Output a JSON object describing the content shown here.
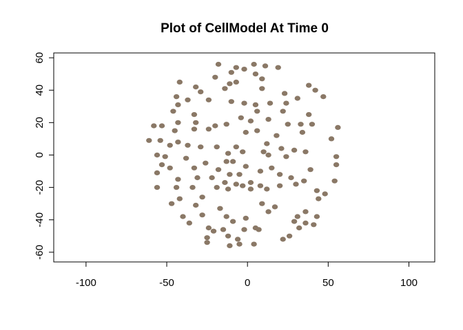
{
  "chart_data": {
    "type": "scatter",
    "title": "Plot of CellModel At Time 0",
    "xlabel": "",
    "ylabel": "",
    "xlim": [
      -120,
      116
    ],
    "ylim": [
      -66,
      63
    ],
    "x_ticks": [
      -100,
      -50,
      0,
      50,
      100
    ],
    "y_ticks": [
      -60,
      -40,
      -20,
      0,
      20,
      40,
      60
    ],
    "grid": false,
    "point_color": "#8a7866",
    "points": [
      [
        -18,
        56
      ],
      [
        -2,
        53
      ],
      [
        4,
        56
      ],
      [
        11,
        55
      ],
      [
        19,
        54
      ],
      [
        -7,
        54
      ],
      [
        -10,
        51
      ],
      [
        5,
        50
      ],
      [
        9,
        47
      ],
      [
        -20,
        48
      ],
      [
        -42,
        45
      ],
      [
        -7,
        45
      ],
      [
        -11,
        44
      ],
      [
        38,
        43
      ],
      [
        42,
        40
      ],
      [
        -32,
        42
      ],
      [
        -14,
        41
      ],
      [
        9,
        41
      ],
      [
        -29,
        39
      ],
      [
        23,
        38
      ],
      [
        -44,
        36
      ],
      [
        47,
        36
      ],
      [
        31,
        35
      ],
      [
        -10,
        33
      ],
      [
        -2,
        32
      ],
      [
        -37,
        34
      ],
      [
        -24,
        34
      ],
      [
        5,
        31
      ],
      [
        14,
        32
      ],
      [
        24,
        32
      ],
      [
        -43,
        31
      ],
      [
        6,
        27
      ],
      [
        -46,
        27
      ],
      [
        22,
        27
      ],
      [
        -33,
        25
      ],
      [
        38,
        25
      ],
      [
        -4,
        23
      ],
      [
        2,
        21
      ],
      [
        33,
        19
      ],
      [
        40,
        19
      ],
      [
        -43,
        20
      ],
      [
        -32,
        20
      ],
      [
        13,
        22
      ],
      [
        -58,
        18
      ],
      [
        -53,
        18
      ],
      [
        -20,
        18
      ],
      [
        -13,
        19
      ],
      [
        25,
        19
      ],
      [
        56,
        17
      ],
      [
        -24,
        16
      ],
      [
        -33,
        16
      ],
      [
        -45,
        15
      ],
      [
        6,
        15
      ],
      [
        -1,
        14
      ],
      [
        34,
        14
      ],
      [
        18,
        12
      ],
      [
        52,
        10
      ],
      [
        -61,
        9
      ],
      [
        -43,
        8
      ],
      [
        -54,
        9
      ],
      [
        -29,
        5
      ],
      [
        -37,
        6
      ],
      [
        -48,
        6
      ],
      [
        -19,
        5
      ],
      [
        -7,
        5
      ],
      [
        21,
        4
      ],
      [
        29,
        3
      ],
      [
        12,
        7
      ],
      [
        10,
        2
      ],
      [
        36,
        2
      ],
      [
        -12,
        1
      ],
      [
        -3,
        2
      ],
      [
        -56,
        0
      ],
      [
        -51,
        -1
      ],
      [
        -38,
        -2
      ],
      [
        24,
        -1
      ],
      [
        13,
        0
      ],
      [
        55,
        -1
      ],
      [
        -13,
        -4
      ],
      [
        -9,
        -4
      ],
      [
        -26,
        -5
      ],
      [
        -53,
        -6
      ],
      [
        -48,
        -8
      ],
      [
        -33,
        -8
      ],
      [
        -18,
        -9
      ],
      [
        -1,
        -7
      ],
      [
        15,
        -8
      ],
      [
        39,
        -9
      ],
      [
        55,
        -6
      ],
      [
        8,
        -10
      ],
      [
        -11,
        -12
      ],
      [
        -56,
        -11
      ],
      [
        -5,
        -12
      ],
      [
        20,
        -12
      ],
      [
        -22,
        -14
      ],
      [
        -31,
        -14
      ],
      [
        -43,
        -15
      ],
      [
        27,
        -14
      ],
      [
        35,
        -16
      ],
      [
        54,
        -16
      ],
      [
        -14,
        -17
      ],
      [
        2,
        -17
      ],
      [
        -7,
        -18
      ],
      [
        -3,
        -19
      ],
      [
        8,
        -19
      ],
      [
        20,
        -19
      ],
      [
        30,
        -18
      ],
      [
        -56,
        -20
      ],
      [
        -44,
        -20
      ],
      [
        -19,
        -20
      ],
      [
        -34,
        -20
      ],
      [
        -12,
        -21
      ],
      [
        2,
        -21
      ],
      [
        12,
        -21
      ],
      [
        43,
        -22
      ],
      [
        -28,
        -26
      ],
      [
        -42,
        -27
      ],
      [
        48,
        -24
      ],
      [
        44,
        -27
      ],
      [
        -47,
        -30
      ],
      [
        -32,
        -31
      ],
      [
        17,
        -32
      ],
      [
        9,
        -30
      ],
      [
        -17,
        -33
      ],
      [
        36,
        -35
      ],
      [
        13,
        -35
      ],
      [
        -40,
        -38
      ],
      [
        -28,
        -37
      ],
      [
        -13,
        -38
      ],
      [
        31,
        -38
      ],
      [
        -1,
        -39
      ],
      [
        43,
        -38
      ],
      [
        29,
        -41
      ],
      [
        -9,
        -41
      ],
      [
        36,
        -42
      ],
      [
        41,
        -43
      ],
      [
        -36,
        -42
      ],
      [
        5,
        -45
      ],
      [
        -24,
        -45
      ],
      [
        -15,
        -46
      ],
      [
        -21,
        -47
      ],
      [
        32,
        -45
      ],
      [
        -2,
        -46
      ],
      [
        7,
        -46
      ],
      [
        26,
        -50
      ],
      [
        -12,
        -50
      ],
      [
        -6,
        -52
      ],
      [
        -25,
        -51
      ],
      [
        -25,
        -54
      ],
      [
        22,
        -52
      ],
      [
        -11,
        -56
      ],
      [
        -5,
        -55
      ],
      [
        4,
        -55
      ]
    ]
  }
}
